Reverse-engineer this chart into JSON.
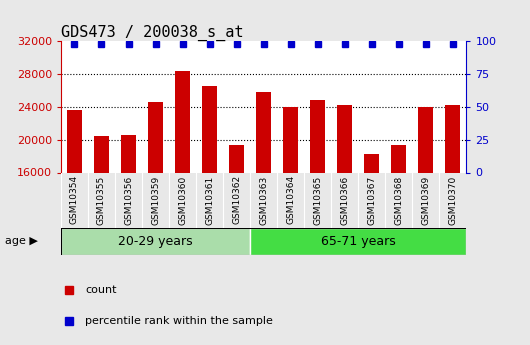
{
  "title": "GDS473 / 200038_s_at",
  "samples": [
    "GSM10354",
    "GSM10355",
    "GSM10356",
    "GSM10359",
    "GSM10360",
    "GSM10361",
    "GSM10362",
    "GSM10363",
    "GSM10364",
    "GSM10365",
    "GSM10366",
    "GSM10367",
    "GSM10368",
    "GSM10369",
    "GSM10370"
  ],
  "counts": [
    23600,
    20400,
    20600,
    24600,
    28400,
    26600,
    19400,
    25800,
    24000,
    24800,
    24200,
    18200,
    19400,
    24000,
    24200
  ],
  "bar_bottom": 16000,
  "bar_color": "#cc0000",
  "dot_color": "#0000cc",
  "ylim_left": [
    16000,
    32000
  ],
  "ylim_right": [
    0,
    100
  ],
  "yticks_left": [
    16000,
    20000,
    24000,
    28000,
    32000
  ],
  "yticks_right": [
    0,
    25,
    50,
    75,
    100
  ],
  "group1_label": "20-29 years",
  "group1_count": 7,
  "group1_color": "#aaddaa",
  "group2_label": "65-71 years",
  "group2_count": 8,
  "group2_color": "#44dd44",
  "group_border_color": "white",
  "age_label": "age",
  "xlabel_color": "#cc0000",
  "title_fontsize": 11,
  "right_tick_color": "#0000cc",
  "figure_bg_color": "#e8e8e8",
  "plot_bg_color": "#ffffff",
  "xtick_bg_color": "#cccccc",
  "legend_count_label": "count",
  "legend_percentile_label": "percentile rank within the sample"
}
